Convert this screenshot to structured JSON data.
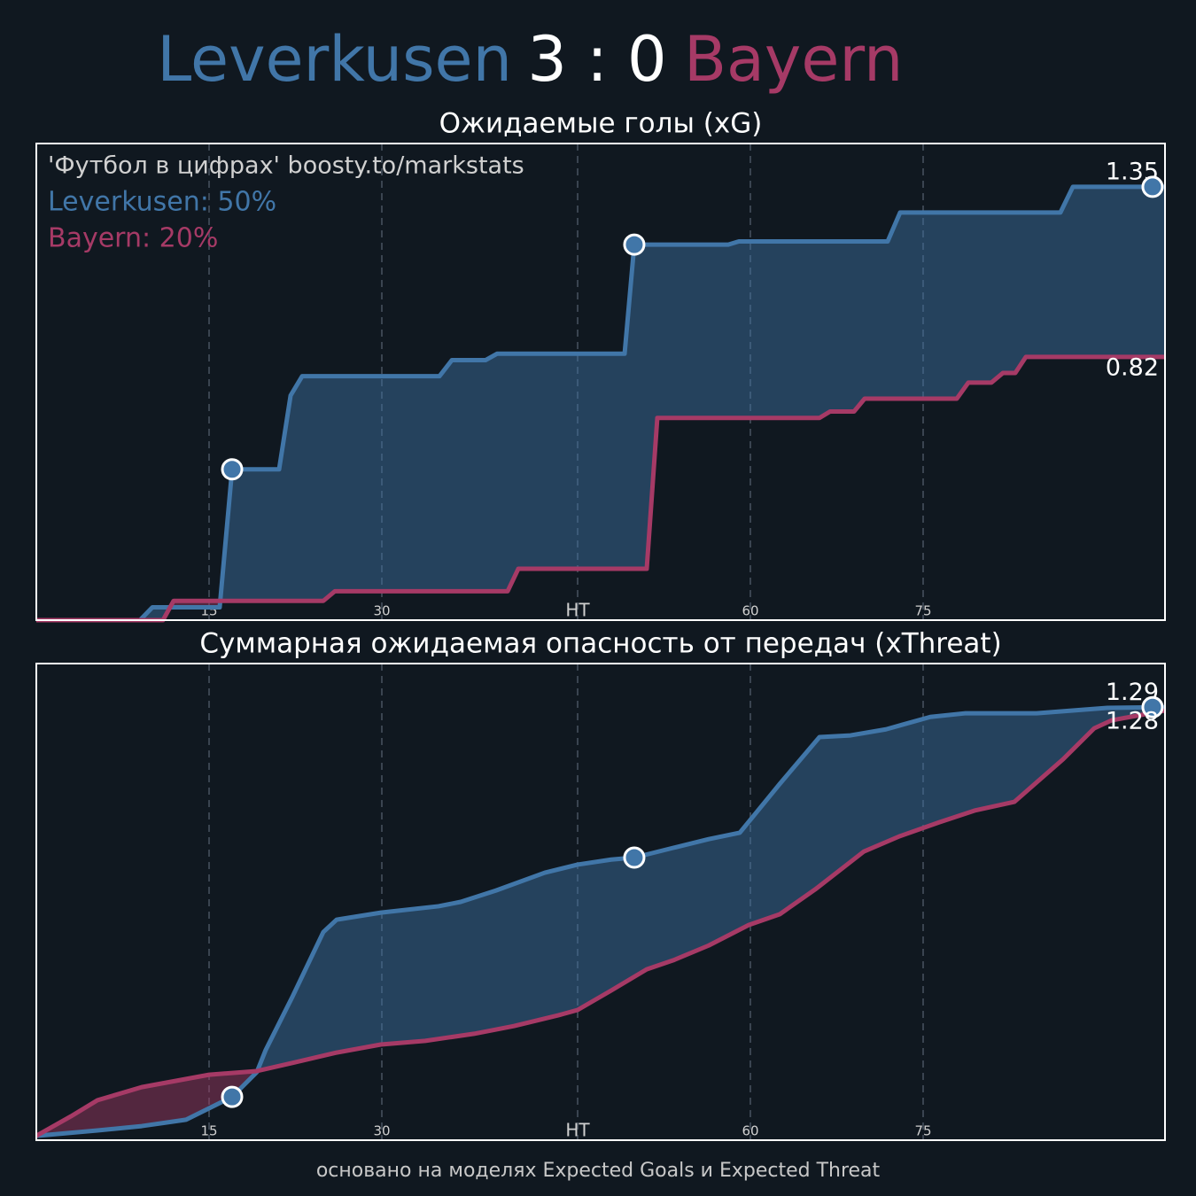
{
  "header": {
    "home": "Leverkusen",
    "score": "3 : 0",
    "away": "Bayern"
  },
  "footer": "основано на моделях Expected Goals и Expected Threat",
  "chart_data": [
    {
      "type": "line",
      "title": "Ожидаемые голы (xG)",
      "annotations": [
        "'Футбол в цифрах' boosty.to/markstats",
        "Leverkusen: 50%",
        "Bayern: 20%"
      ],
      "xlim": [
        0,
        98
      ],
      "ylim": [
        0,
        1.485
      ],
      "grid": true,
      "xticks": [
        15,
        30,
        {
          "value": 47,
          "label": "HT"
        },
        {
          "value": 62,
          "label": "60"
        },
        {
          "value": 77,
          "label": "75"
        }
      ],
      "series": [
        {
          "color": "#4176a8",
          "x": [
            0,
            9.0,
            10.08,
            15.92,
            17.0,
            21.08,
            22.08,
            23.08,
            35.0,
            36.08,
            39.0,
            40.0,
            51.08,
            51.92,
            60.08,
            61.0,
            73.92,
            75.0,
            88.92,
            90.0,
            98
          ],
          "values": [
            0,
            0,
            0.04,
            0.04,
            0.47,
            0.47,
            0.7,
            0.76,
            0.76,
            0.81,
            0.81,
            0.83,
            0.83,
            1.17,
            1.17,
            1.18,
            1.18,
            1.27,
            1.27,
            1.35,
            1.35
          ],
          "markers": {
            "x": [
              17.0,
              51.92,
              96.92
            ],
            "values": [
              0.47,
              1.17,
              1.35
            ]
          }
        },
        {
          "color": "#a63a66",
          "x": [
            0,
            11.0,
            11.92,
            24.92,
            25.92,
            40.92,
            41.85,
            53.0,
            53.92,
            68.0,
            68.92,
            71.0,
            71.92,
            79.92,
            80.92,
            82.92,
            83.92,
            85.0,
            85.92,
            98
          ],
          "values": [
            0,
            0,
            0.06,
            0.06,
            0.09,
            0.09,
            0.16,
            0.16,
            0.63,
            0.63,
            0.65,
            0.65,
            0.69,
            0.69,
            0.74,
            0.74,
            0.77,
            0.77,
            0.82,
            0.82
          ]
        }
      ]
    },
    {
      "type": "line",
      "title": "Суммарная ожидаемая опасность от передач (xThreat)",
      "xlim": [
        0,
        98
      ],
      "ylim": [
        0,
        1.42
      ],
      "grid": true,
      "xticks": [
        15,
        30,
        {
          "value": 47,
          "label": "HT"
        },
        {
          "value": 62,
          "label": "60"
        },
        {
          "value": 77,
          "label": "75"
        }
      ],
      "series": [
        {
          "color": "#4176a8",
          "x": [
            0,
            5.31,
            9.15,
            13.0,
            17.0,
            19.15,
            19.92,
            22.23,
            24.92,
            26.08,
            29.92,
            34.92,
            36.85,
            39.92,
            44.15,
            47.0,
            49.92,
            51.92,
            55.31,
            58.38,
            61.08,
            64.54,
            68.0,
            70.69,
            73.77,
            77.62,
            80.69,
            86.85,
            93.0,
            98
          ],
          "values": [
            0.013,
            0.029,
            0.042,
            0.061,
            0.129,
            0.203,
            0.269,
            0.427,
            0.62,
            0.657,
            0.678,
            0.697,
            0.71,
            0.744,
            0.797,
            0.821,
            0.836,
            0.842,
            0.871,
            0.897,
            0.916,
            1.061,
            1.201,
            1.206,
            1.224,
            1.261,
            1.272,
            1.272,
            1.288,
            1.29
          ],
          "markers": {
            "x": [
              17.0,
              51.92,
              96.92
            ],
            "values": [
              0.129,
              0.842,
              1.29
            ]
          }
        },
        {
          "color": "#a63a66",
          "x": [
            0,
            3.0,
            5.31,
            9.15,
            15.0,
            19.15,
            22.23,
            26.08,
            29.92,
            33.77,
            38.0,
            41.46,
            45.31,
            47.0,
            49.92,
            53.0,
            55.31,
            58.38,
            61.85,
            64.54,
            67.62,
            71.85,
            74.92,
            78.38,
            81.46,
            84.92,
            89.15,
            91.85,
            93.38,
            98
          ],
          "values": [
            0.013,
            0.071,
            0.119,
            0.158,
            0.195,
            0.206,
            0.23,
            0.261,
            0.285,
            0.296,
            0.317,
            0.34,
            0.372,
            0.388,
            0.446,
            0.509,
            0.536,
            0.58,
            0.641,
            0.673,
            0.747,
            0.86,
            0.905,
            0.947,
            0.982,
            1.008,
            1.135,
            1.227,
            1.251,
            1.28
          ]
        }
      ]
    }
  ]
}
